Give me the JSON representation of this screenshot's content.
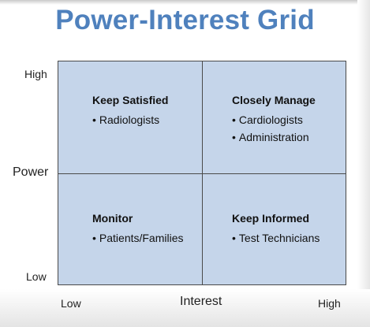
{
  "title": "Power-Interest Grid",
  "axes": {
    "y_label": "Power",
    "y_high": "High",
    "y_low": "Low",
    "x_label": "Interest",
    "x_low": "Low",
    "x_high": "High"
  },
  "quadrants": {
    "top_left": {
      "title": "Keep Satisfied",
      "items": [
        "Radiologists"
      ]
    },
    "top_right": {
      "title": "Closely Manage",
      "items": [
        "Cardiologists",
        "Administration"
      ]
    },
    "bottom_left": {
      "title": "Monitor",
      "items": [
        "Patients/Families"
      ]
    },
    "bottom_right": {
      "title": "Keep Informed",
      "items": [
        "Test Technicians"
      ]
    }
  },
  "colors": {
    "title": "#4f81bd",
    "grid_fill": "#c5d5ea",
    "grid_border": "#4a4a4a"
  }
}
